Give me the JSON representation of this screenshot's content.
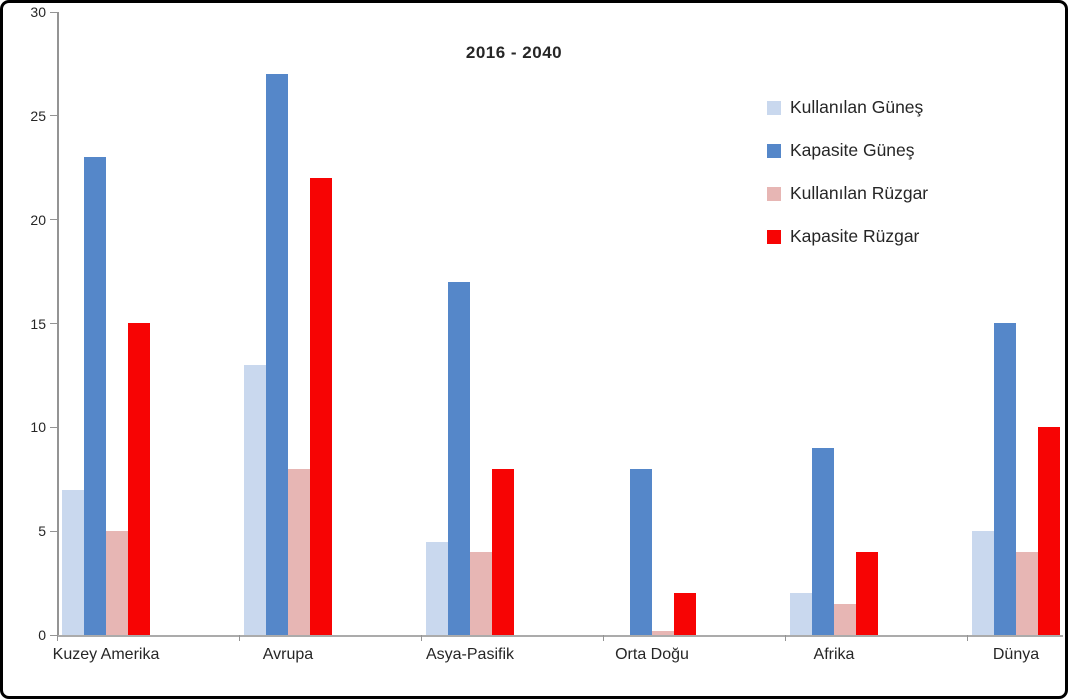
{
  "window": {
    "background": "#ffffff",
    "border_color": "#000000",
    "text_color": "#262626",
    "axis_color": "#949494",
    "baseline_color": "#ababab"
  },
  "chart_data": {
    "type": "bar",
    "title": "2016 - 2040",
    "categories": [
      "Kuzey Amerika",
      "Avrupa",
      "Asya-Pasifik",
      "Orta Doğu",
      "Afrika",
      "Dünya"
    ],
    "series": [
      {
        "name": "Kullanılan Güneş",
        "color": "#c9d8ee",
        "values": [
          7,
          13,
          4.5,
          0,
          2,
          5
        ]
      },
      {
        "name": "Kapasite Güneş",
        "color": "#5587c9",
        "values": [
          23,
          27,
          17,
          8,
          9,
          15
        ]
      },
      {
        "name": "Kullanılan Rüzgar",
        "color": "#e7b6b4",
        "values": [
          5,
          8,
          4,
          0.2,
          1.5,
          4
        ]
      },
      {
        "name": "Kapasite Rüzgar",
        "color": "#f70404",
        "values": [
          15,
          22,
          8,
          2,
          4,
          10
        ]
      }
    ],
    "xlabel": "",
    "ylabel": "",
    "ylim": [
      0,
      30
    ],
    "yticks": [
      0,
      5,
      10,
      15,
      20,
      25,
      30
    ],
    "grid": false,
    "legend_position": "upper-right"
  }
}
